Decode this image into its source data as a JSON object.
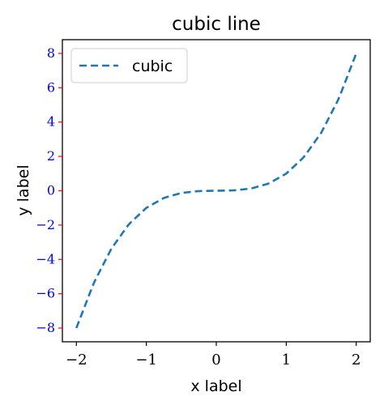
{
  "chart_data": {
    "type": "line",
    "title": "cubic line",
    "xlabel": "x label",
    "ylabel": "y label",
    "xlim": [
      -2.2,
      2.2
    ],
    "ylim": [
      -8.8,
      8.8
    ],
    "xticks": [
      -2,
      -1,
      0,
      1,
      2
    ],
    "xtick_labels": [
      "−2",
      "−1",
      "0",
      "1",
      "2"
    ],
    "yticks": [
      -8,
      -6,
      -4,
      -2,
      0,
      2,
      4,
      6,
      8
    ],
    "ytick_labels": [
      "−8",
      "−6",
      "−4",
      "−2",
      "0",
      "2",
      "4",
      "6",
      "8"
    ],
    "grid": false,
    "legend_position": "upper-left",
    "series": [
      {
        "name": "cubic",
        "color": "#1f77b4",
        "linestyle": "dashed",
        "x": [
          -2,
          -1.75,
          -1.5,
          -1.25,
          -1,
          -0.75,
          -0.5,
          -0.25,
          0,
          0.25,
          0.5,
          0.75,
          1,
          1.25,
          1.5,
          1.75,
          2
        ],
        "y": [
          -8,
          -5.36,
          -3.38,
          -1.95,
          -1,
          -0.42,
          -0.13,
          -0.02,
          0,
          0.02,
          0.13,
          0.42,
          1,
          1.95,
          3.38,
          5.36,
          8
        ]
      }
    ],
    "colors": {
      "ytick_label": "#0000ff",
      "ytick_mark": "#ff0000",
      "axes": "#000000"
    }
  }
}
